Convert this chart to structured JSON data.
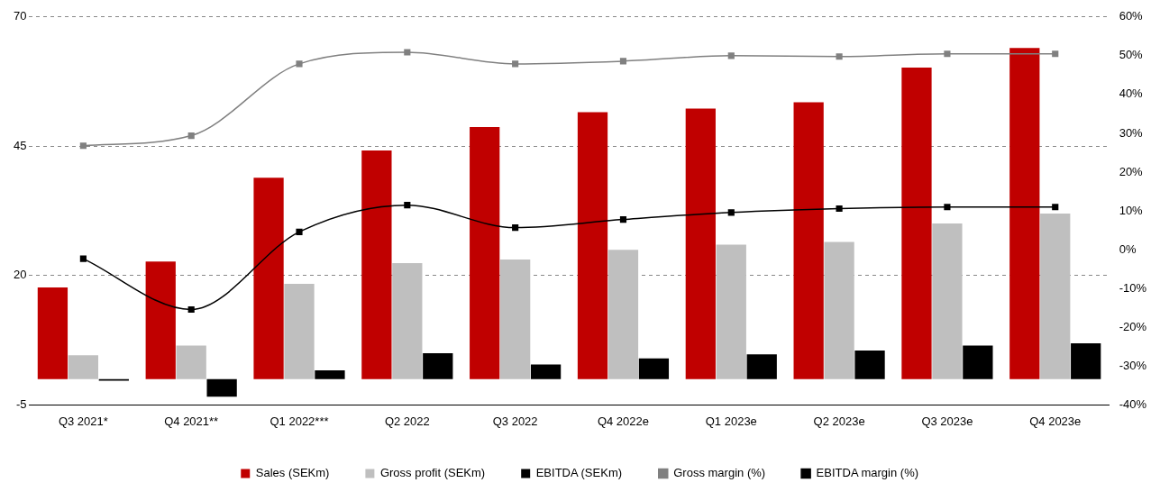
{
  "chart_data": {
    "type": "bar",
    "categories": [
      "Q3 2021*",
      "Q4 2021**",
      "Q1 2022***",
      "Q2 2022",
      "Q3 2022",
      "Q4 2022e",
      "Q1 2023e",
      "Q2 2023e",
      "Q3 2023e",
      "Q4 2023e"
    ],
    "series": [
      {
        "name": "Sales (SEKm)",
        "color": "#c00000",
        "values": [
          17.7,
          22.7,
          38.9,
          44.2,
          48.7,
          51.6,
          52.3,
          53.5,
          60.2,
          64.0
        ]
      },
      {
        "name": "Gross profit (SEKm)",
        "color": "#bfbfbf",
        "values": [
          4.6,
          6.5,
          18.4,
          22.4,
          23.1,
          25.0,
          26.0,
          26.5,
          30.1,
          32.0
        ]
      },
      {
        "name": "EBITDA (SEKm)",
        "color": "#000000",
        "values": [
          -0.3,
          -3.4,
          1.7,
          5.0,
          2.8,
          4.0,
          4.8,
          5.5,
          6.5,
          6.9
        ]
      },
      {
        "name": "Gross margin (%)",
        "type": "line",
        "axis": "y2",
        "color": "#808080",
        "values": [
          26.8,
          29.4,
          47.9,
          50.9,
          47.9,
          48.6,
          50.0,
          49.8,
          50.5,
          50.5
        ]
      },
      {
        "name": "EBITDA margin (%)",
        "type": "line",
        "axis": "y2",
        "color": "#000000",
        "values": [
          -2.3,
          -15.4,
          4.6,
          11.5,
          5.7,
          7.8,
          9.6,
          10.6,
          11.0,
          11.0
        ]
      }
    ],
    "ylim": [
      -5,
      70
    ],
    "yticks": [
      -5,
      20,
      45,
      70
    ],
    "y2lim": [
      -40,
      60
    ],
    "y2ticks": [
      {
        "value": -40,
        "label": "-40%"
      },
      {
        "value": -30,
        "label": "-30%"
      },
      {
        "value": -20,
        "label": "-20%"
      },
      {
        "value": -10,
        "label": "-10%"
      },
      {
        "value": 0,
        "label": "0%"
      },
      {
        "value": 10,
        "label": "10%"
      },
      {
        "value": 20,
        "label": "20%"
      },
      {
        "value": 30,
        "label": "30%"
      },
      {
        "value": 40,
        "label": "40%"
      },
      {
        "value": 50,
        "label": "50%"
      },
      {
        "value": 60,
        "label": "60%"
      }
    ],
    "grid": "y",
    "legend": "bottom",
    "marker": "square",
    "line_style": "solid"
  }
}
